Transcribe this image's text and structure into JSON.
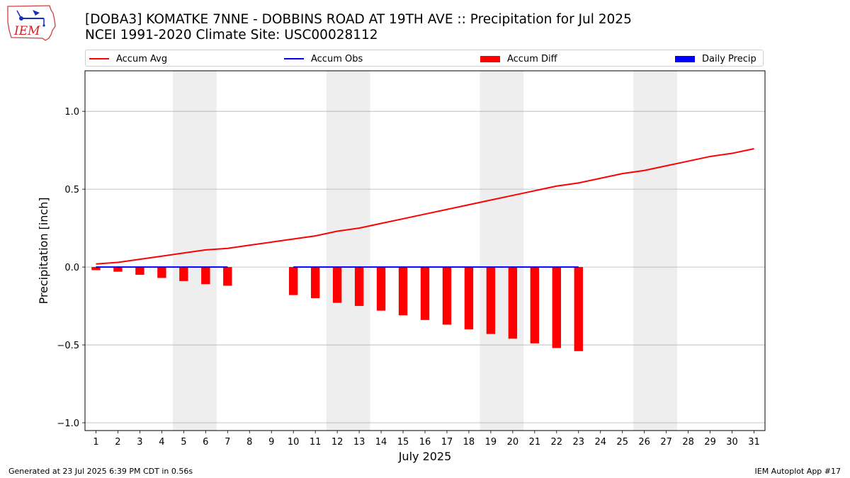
{
  "header": {
    "title_line1": "[DOBA3] KOMATKE 7NNE - DOBBINS ROAD AT 19TH AVE :: Precipitation for Jul 2025",
    "title_line2": "NCEI 1991-2020 Climate Site: USC00028112",
    "logo_text": "IEM"
  },
  "legend": {
    "accum_avg": "Accum Avg",
    "accum_obs": "Accum Obs",
    "accum_diff": "Accum Diff",
    "daily_precip": "Daily Precip"
  },
  "footer": {
    "generated": "Generated at 23 Jul 2025 6:39 PM CDT in 0.56s",
    "app": "IEM Autoplot App #17"
  },
  "colors": {
    "accum_avg": "#ff0000",
    "accum_obs": "#0000ff",
    "accum_diff": "#ff0000",
    "daily_precip": "#0000ff",
    "weekend_shade": "#eeeeee",
    "grid": "#b0b0b0"
  },
  "chart_data": {
    "type": "bar",
    "xlabel": "July 2025",
    "ylabel": "Precipitation [inch]",
    "xlim": [
      0.5,
      31.5
    ],
    "ylim": [
      -1.05,
      1.26
    ],
    "yticks": [
      -1.0,
      -0.5,
      0.0,
      0.5,
      1.0
    ],
    "ytick_labels": [
      "−1.0",
      "−0.5",
      "0.0",
      "0.5",
      "1.0"
    ],
    "xticks": [
      1,
      2,
      3,
      4,
      5,
      6,
      7,
      8,
      9,
      10,
      11,
      12,
      13,
      14,
      15,
      16,
      17,
      18,
      19,
      20,
      21,
      22,
      23,
      24,
      25,
      26,
      27,
      28,
      29,
      30,
      31
    ],
    "grid": "horizontal",
    "legend_position": "top",
    "shaded_weekends": [
      [
        5,
        6
      ],
      [
        12,
        13
      ],
      [
        19,
        20
      ],
      [
        26,
        27
      ]
    ],
    "series": [
      {
        "name": "Accum Avg",
        "type": "line",
        "x": [
          1,
          2,
          3,
          4,
          5,
          6,
          7,
          8,
          9,
          10,
          11,
          12,
          13,
          14,
          15,
          16,
          17,
          18,
          19,
          20,
          21,
          22,
          23,
          24,
          25,
          26,
          27,
          28,
          29,
          30,
          31
        ],
        "values": [
          0.02,
          0.03,
          0.05,
          0.07,
          0.09,
          0.11,
          0.12,
          0.14,
          0.16,
          0.18,
          0.2,
          0.23,
          0.25,
          0.28,
          0.31,
          0.34,
          0.37,
          0.4,
          0.43,
          0.46,
          0.49,
          0.52,
          0.54,
          0.57,
          0.6,
          0.62,
          0.65,
          0.68,
          0.71,
          0.73,
          0.76
        ]
      },
      {
        "name": "Accum Obs",
        "type": "line",
        "x": [
          1,
          2,
          3,
          4,
          5,
          6,
          7,
          null,
          null,
          10,
          11,
          12,
          13,
          14,
          15,
          16,
          17,
          18,
          19,
          20,
          21,
          22,
          23
        ],
        "values": [
          0,
          0,
          0,
          0,
          0,
          0,
          0,
          null,
          null,
          0,
          0,
          0,
          0,
          0,
          0,
          0,
          0,
          0,
          0,
          0,
          0,
          0,
          0
        ]
      },
      {
        "name": "Accum Diff",
        "type": "bar",
        "x": [
          1,
          2,
          3,
          4,
          5,
          6,
          7,
          10,
          11,
          12,
          13,
          14,
          15,
          16,
          17,
          18,
          19,
          20,
          21,
          22,
          23
        ],
        "values": [
          -0.02,
          -0.03,
          -0.05,
          -0.07,
          -0.09,
          -0.11,
          -0.12,
          -0.18,
          -0.2,
          -0.23,
          -0.25,
          -0.28,
          -0.31,
          -0.34,
          -0.37,
          -0.4,
          -0.43,
          -0.46,
          -0.49,
          -0.52,
          -0.54
        ]
      },
      {
        "name": "Daily Precip",
        "type": "bar",
        "x": [
          1,
          2,
          3,
          4,
          5,
          6,
          7,
          10,
          11,
          12,
          13,
          14,
          15,
          16,
          17,
          18,
          19,
          20,
          21,
          22,
          23
        ],
        "values": [
          0,
          0,
          0,
          0,
          0,
          0,
          0,
          0,
          0,
          0,
          0,
          0,
          0,
          0,
          0,
          0,
          0,
          0,
          0,
          0,
          0
        ]
      }
    ]
  }
}
